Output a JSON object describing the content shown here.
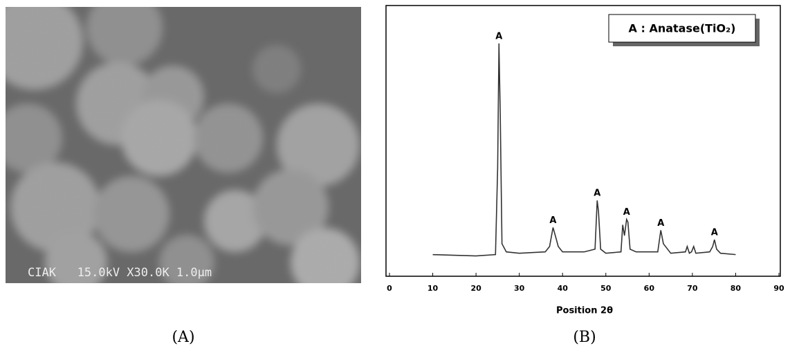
{
  "panels": {
    "left_label": "(A)",
    "right_label": "(B)",
    "sem_caption": "CIAK   15.0kV X30.0K 1.0μm"
  },
  "chart_data": {
    "type": "line",
    "xlabel": "Position 2θ",
    "legend_text": "A : Anatase(TiO₂)",
    "x": [
      10,
      20,
      24.5,
      25,
      25.3,
      25.6,
      26,
      27,
      30,
      36,
      37,
      37.8,
      38.5,
      39,
      40,
      45,
      47.5,
      48,
      48.3,
      48.8,
      50,
      53.5,
      53.9,
      54.3,
      54.8,
      55.1,
      55.6,
      57,
      62,
      62.7,
      63.3,
      65,
      68.4,
      68.8,
      69.3,
      69.8,
      70.3,
      70.8,
      74,
      74.7,
      75.1,
      75.6,
      76.5,
      80
    ],
    "values": [
      8,
      7.5,
      8,
      40,
      86,
      60,
      12,
      9,
      8.5,
      9,
      11,
      18,
      14,
      11,
      9,
      9,
      10,
      28,
      24,
      10,
      8.5,
      9,
      19,
      15,
      21,
      20,
      10,
      9,
      9,
      17,
      12,
      8.5,
      9,
      11,
      8.5,
      9,
      11,
      8.5,
      9,
      11,
      13.5,
      10,
      8.5,
      8
    ],
    "color": "#333333",
    "xlim": [
      0,
      90
    ],
    "xticks": [
      0,
      10,
      20,
      30,
      40,
      50,
      60,
      70,
      80,
      90
    ],
    "ylim": [
      0,
      100
    ],
    "annotations": [
      {
        "text": "A",
        "x": 25.3,
        "y": 86
      },
      {
        "text": "A",
        "x": 37.8,
        "y": 18
      },
      {
        "text": "A",
        "x": 48,
        "y": 28
      },
      {
        "text": "A",
        "x": 54.8,
        "y": 21
      },
      {
        "text": "A",
        "x": 62.7,
        "y": 17
      },
      {
        "text": "A",
        "x": 75.1,
        "y": 13.5
      }
    ]
  }
}
